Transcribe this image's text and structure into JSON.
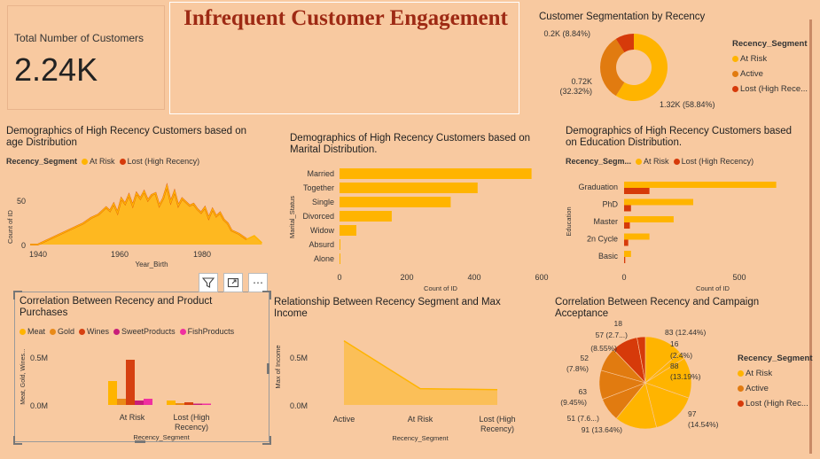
{
  "title": "Infrequent Customer Engagement",
  "kpi": {
    "label": "Total Number of Customers",
    "value": "2.24K"
  },
  "colors": {
    "at_risk": "#ffb400",
    "active": "#e17b10",
    "lost": "#d63a0a",
    "gold": "#e98a18",
    "wines": "#d64010",
    "sweet": "#c81e7a",
    "fish": "#f030a0",
    "background": "#f8c9a0"
  },
  "donut": {
    "title": "Customer Segmentation by Recency",
    "legend_title": "Recency_Segment",
    "legend": [
      "At Risk",
      "Active",
      "Lost (High Rece..."
    ],
    "labels": [
      "0.2K (8.84%)",
      "0.72K",
      "(32.32%)",
      "1.32K (58.84%)"
    ]
  },
  "age": {
    "title": "Demographics of High Recency Customers based on age Distribution",
    "legend_title": "Recency_Segment",
    "legend": [
      "At Risk",
      "Lost (High Recency)"
    ],
    "xlabel": "Year_Birth",
    "ylabel": "Count of ID",
    "xticks": [
      "1940",
      "1960",
      "1980"
    ],
    "yticks": [
      "50",
      "0"
    ]
  },
  "marital": {
    "title": "Demographics of High Recency Customers based on Marital Distribution.",
    "xlabel": "Count of ID",
    "ylabel": "Marital_Status",
    "xticks": [
      "0",
      "200",
      "400",
      "600"
    ]
  },
  "education": {
    "title": "Demographics of High Recency Customers based on Education Distribution.",
    "legend_title": "Recency_Segm...",
    "legend": [
      "At Risk",
      "Lost (High Recency)"
    ],
    "xlabel": "Count of ID",
    "ylabel": "Education",
    "xticks": [
      "0",
      "500"
    ]
  },
  "products": {
    "title": "Correlation Between Recency and Product Purchases",
    "legend": [
      "Meat",
      "Gold",
      "Wines",
      "SweetProducts",
      "FishProducts"
    ],
    "xlabel": "Recency_Segment",
    "ylabel": "Meat, Gold, Wines...",
    "yticks": [
      "0.5M",
      "0.0M"
    ],
    "categories": [
      "At Risk",
      "Lost (High",
      "Recency)"
    ]
  },
  "income": {
    "title": "Relationship Between Recency Segment and Max Income",
    "xlabel": "Recency_Segment",
    "ylabel": "Max of Income",
    "yticks": [
      "0.5M",
      "0.0M"
    ],
    "categories": [
      "Active",
      "At Risk",
      "Lost (High",
      "Recency)"
    ]
  },
  "campaign": {
    "title": "Correlation Between Recency and Campaign Acceptance",
    "legend_title": "Recency_Segment",
    "legend": [
      "At Risk",
      "Active",
      "Lost (High Rec..."
    ],
    "labels": [
      "18",
      "57 (2.7...)",
      "(8.55%)",
      "52",
      "(7.8%)",
      "63",
      "(9.45%)",
      "51 (7.6...)",
      "91 (13.64%)",
      "83 (12.44%)",
      "16",
      "(2.4%)",
      "88",
      "(13.19%)",
      "97",
      "(14.54%)"
    ]
  },
  "toolbar": {
    "filter_icon": "filter-icon",
    "focus_icon": "focus-mode-icon",
    "more": "⋯"
  },
  "chart_data": [
    {
      "type": "pie",
      "title": "Customer Segmentation by Recency",
      "labels": [
        "At Risk",
        "Active",
        "Lost (High Recency)"
      ],
      "values": [
        1.32,
        0.72,
        0.2
      ],
      "percent": [
        58.84,
        32.32,
        8.84
      ],
      "unit": "K",
      "donut": true
    },
    {
      "type": "area",
      "title": "Demographics of High Recency Customers based on age Distribution",
      "xlabel": "Year_Birth",
      "ylabel": "Count of ID",
      "xlim": [
        1937,
        2000
      ],
      "ylim": [
        0,
        75
      ],
      "series": [
        {
          "name": "At Risk",
          "x": [
            1937,
            1939,
            1941,
            1943,
            1945,
            1947,
            1949,
            1951,
            1953,
            1955,
            1957,
            1958,
            1959,
            1960,
            1961,
            1962,
            1963,
            1964,
            1965,
            1966,
            1967,
            1968,
            1969,
            1970,
            1971,
            1972,
            1973,
            1974,
            1975,
            1976,
            1977,
            1978,
            1979,
            1980,
            1981,
            1982,
            1983,
            1984,
            1985,
            1986,
            1987,
            1988,
            1989,
            1990,
            1992,
            1994,
            1996,
            1998
          ],
          "values": [
            0,
            0,
            4,
            8,
            12,
            16,
            20,
            24,
            30,
            34,
            42,
            38,
            46,
            36,
            52,
            46,
            56,
            44,
            58,
            52,
            60,
            50,
            56,
            58,
            44,
            52,
            66,
            48,
            60,
            44,
            52,
            48,
            44,
            46,
            40,
            36,
            42,
            30,
            40,
            32,
            36,
            28,
            24,
            16,
            12,
            6,
            10,
            2
          ]
        },
        {
          "name": "Lost (High Recency)",
          "x": [
            1937,
            1939,
            1941,
            1943,
            1945,
            1947,
            1949,
            1951,
            1953,
            1955,
            1957,
            1958,
            1959,
            1960,
            1961,
            1962,
            1963,
            1964,
            1965,
            1966,
            1967,
            1968,
            1969,
            1970,
            1971,
            1972,
            1973,
            1974,
            1975,
            1976,
            1977,
            1978,
            1979,
            1980,
            1981,
            1982,
            1983,
            1984,
            1985,
            1986,
            1987,
            1988,
            1989,
            1990,
            1992,
            1994
          ],
          "values": [
            0,
            0,
            4,
            8,
            12,
            16,
            20,
            24,
            30,
            34,
            42,
            38,
            46,
            36,
            52,
            46,
            56,
            44,
            58,
            52,
            60,
            50,
            56,
            58,
            44,
            52,
            66,
            48,
            60,
            44,
            52,
            48,
            44,
            46,
            40,
            36,
            42,
            30,
            40,
            32,
            36,
            28,
            24,
            16,
            12,
            6
          ]
        }
      ]
    },
    {
      "type": "bar",
      "orientation": "horizontal",
      "title": "Demographics of High Recency Customers based on Marital Distribution.",
      "categories": [
        "Married",
        "Together",
        "Single",
        "Divorced",
        "Widow",
        "Absurd",
        "Alone"
      ],
      "values": [
        570,
        410,
        330,
        155,
        50,
        2,
        2
      ],
      "xlabel": "Count of ID",
      "ylabel": "Marital_Status",
      "xlim": [
        0,
        600
      ]
    },
    {
      "type": "bar",
      "orientation": "horizontal",
      "title": "Demographics of High Recency Customers based on Education Distribution.",
      "categories": [
        "Graduation",
        "PhD",
        "Master",
        "2n Cycle",
        "Basic"
      ],
      "xlabel": "Count of ID",
      "ylabel": "Education",
      "xlim": [
        0,
        700
      ],
      "series": [
        {
          "name": "At Risk",
          "values": [
            660,
            300,
            215,
            110,
            30
          ]
        },
        {
          "name": "Lost (High Recency)",
          "values": [
            110,
            30,
            25,
            18,
            5
          ]
        }
      ]
    },
    {
      "type": "bar",
      "title": "Correlation Between Recency and Product Purchases",
      "categories": [
        "At Risk",
        "Lost (High Recency)"
      ],
      "xlabel": "Recency_Segment",
      "ylabel": "Meat, Gold, Wines...",
      "ylim": [
        0,
        0.75
      ],
      "unit": "M",
      "series": [
        {
          "name": "Meat",
          "values": [
            0.27,
            0.05
          ]
        },
        {
          "name": "Gold",
          "values": [
            0.07,
            0.02
          ]
        },
        {
          "name": "Wines",
          "values": [
            0.51,
            0.03
          ]
        },
        {
          "name": "SweetProducts",
          "values": [
            0.05,
            0.01
          ]
        },
        {
          "name": "FishProducts",
          "values": [
            0.07,
            0.015
          ]
        }
      ]
    },
    {
      "type": "area",
      "title": "Relationship Between Recency Segment and Max Income",
      "categories": [
        "Active",
        "At Risk",
        "Lost (High Recency)"
      ],
      "values": [
        0.67,
        0.17,
        0.16
      ],
      "xlabel": "Recency_Segment",
      "ylabel": "Max of Income",
      "ylim": [
        0,
        0.75
      ],
      "unit": "M"
    },
    {
      "type": "pie",
      "title": "Correlation Between Recency and Campaign Acceptance",
      "legend": [
        "At Risk",
        "Active",
        "Lost (High Recency)"
      ],
      "values": [
        83,
        16,
        88,
        97,
        91,
        51,
        63,
        52,
        57,
        18
      ],
      "percent": [
        12.44,
        2.4,
        13.19,
        14.54,
        13.64,
        7.6,
        9.45,
        7.8,
        8.55,
        2.7
      ],
      "segments": [
        "At Risk",
        "At Risk",
        "At Risk",
        "At Risk",
        "At Risk",
        "Active",
        "Active",
        "Active",
        "Lost (High Recency)",
        "Lost (High Recency)"
      ]
    }
  ]
}
